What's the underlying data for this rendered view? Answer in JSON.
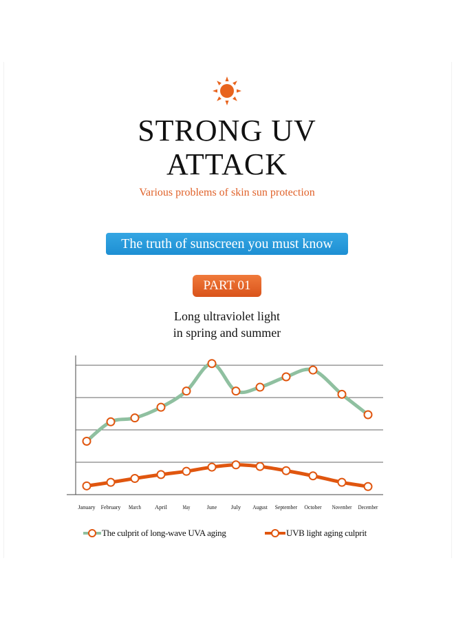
{
  "header": {
    "icon": "sun-icon",
    "headline_line1": "STRONG UV",
    "headline_line2": "ATTACK",
    "subtitle": "Various problems of skin sun protection",
    "truth_banner": "The truth of sunscreen you must know",
    "part_badge": "PART 01"
  },
  "colors": {
    "accent_orange": "#e0622a",
    "banner_blue": "#1e96d9",
    "uva_series": "#8fc0a0",
    "uvb_series": "#e0560f",
    "grid": "#666666"
  },
  "chart_data": {
    "type": "line",
    "title_line1": "Long ultraviolet light",
    "title_line2": "in spring and summer",
    "categories": [
      "January",
      "February",
      "March",
      "April",
      "May",
      "June",
      "July",
      "August",
      "September",
      "October",
      "November",
      "December"
    ],
    "ylim": [
      0,
      4.3
    ],
    "grid": true,
    "legend_position": "bottom",
    "series": [
      {
        "name": "The culprit of long-wave UVA aging",
        "color": "#8fc0a0",
        "values": [
          1.65,
          2.25,
          2.37,
          2.7,
          3.2,
          4.05,
          3.2,
          3.32,
          3.64,
          3.85,
          3.1,
          2.47
        ]
      },
      {
        "name": "UVB light aging culprit",
        "color": "#e0560f",
        "values": [
          0.27,
          0.38,
          0.5,
          0.62,
          0.72,
          0.85,
          0.92,
          0.87,
          0.74,
          0.58,
          0.38,
          0.25
        ]
      }
    ]
  }
}
